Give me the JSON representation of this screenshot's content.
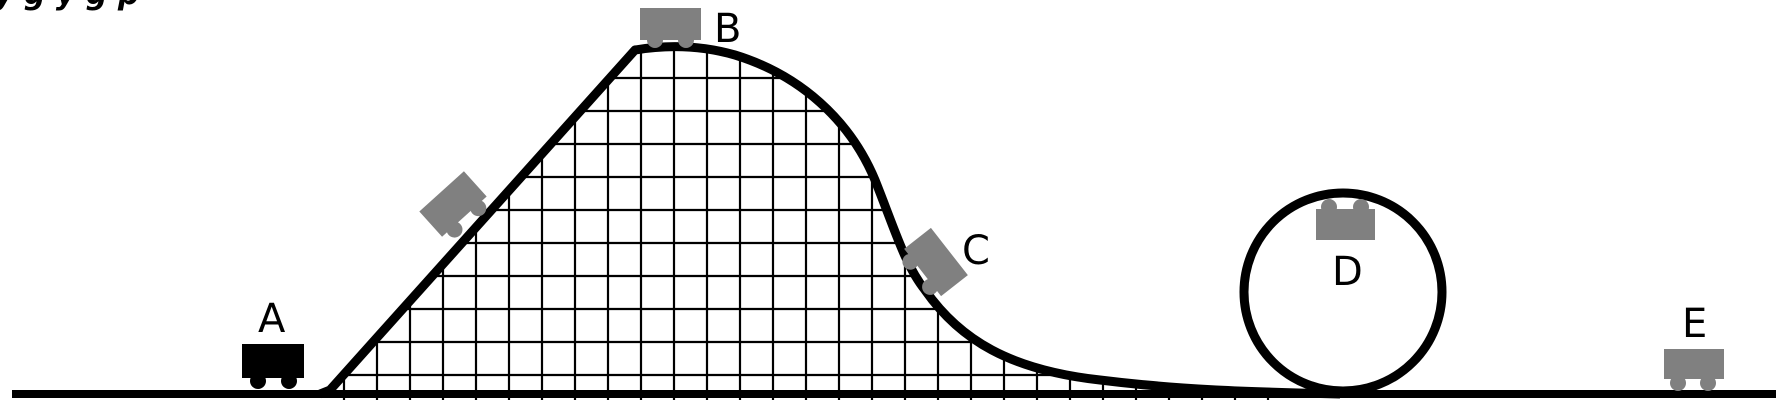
{
  "caption_fragment": "y      g y                               g                 p",
  "track_color": "#000000",
  "lattice_color": "#000000",
  "cart_color_gray": "#808080",
  "cart_color_black": "#000000",
  "carts": [
    {
      "label": "A",
      "color": "black"
    },
    {
      "label": "",
      "color": "gray"
    },
    {
      "label": "B",
      "color": "gray"
    },
    {
      "label": "C",
      "color": "gray"
    },
    {
      "label": "D",
      "color": "gray"
    },
    {
      "label": "E",
      "color": "gray"
    }
  ]
}
